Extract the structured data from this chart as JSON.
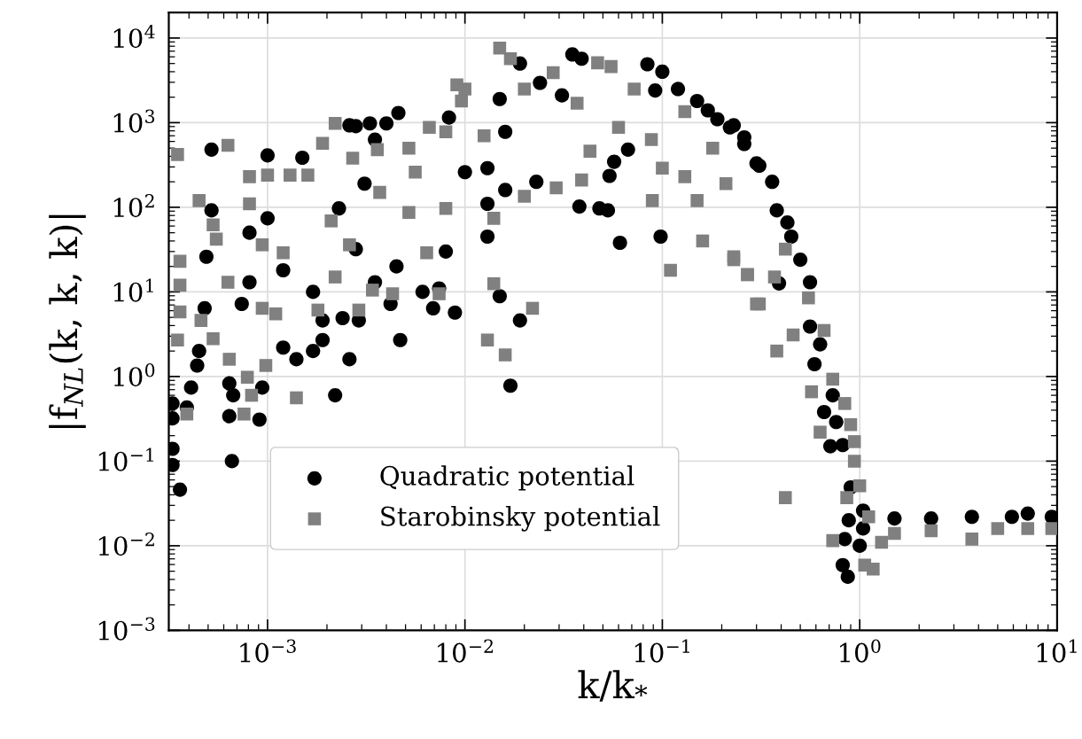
{
  "chart_data": {
    "type": "scatter",
    "xlabel": "k/k$_{*}$",
    "ylabel": "|f$_{NL}$(k, k, k)|",
    "log": "xy",
    "grid": true,
    "legend": "bottom left",
    "xlim": [
      0.000316,
      10
    ],
    "ylim": [
      0.001,
      20000
    ],
    "xticks": [
      {
        "value": 0.001,
        "label": "10$^{−3}$"
      },
      {
        "value": 0.01,
        "label": "10$^{−2}$"
      },
      {
        "value": 0.1,
        "label": "10$^{−1}$"
      },
      {
        "value": 1,
        "label": "10$^{0}$"
      },
      {
        "value": 10,
        "label": "10$^{1}$"
      }
    ],
    "yticks": [
      {
        "value": 0.001,
        "label": "10$^{−3}$"
      },
      {
        "value": 0.01,
        "label": "10$^{−2}$"
      },
      {
        "value": 0.1,
        "label": "10$^{−1}$"
      },
      {
        "value": 1,
        "label": "10$^{0}$"
      },
      {
        "value": 10,
        "label": "10$^{1}$"
      },
      {
        "value": 100,
        "label": "10$^{2}$"
      },
      {
        "value": 1000,
        "label": "10$^{3}$"
      },
      {
        "value": 10000,
        "label": "10$^{4}$"
      }
    ],
    "series": [
      {
        "name": "Quadratic potential",
        "color": "#000000",
        "marker": "circle",
        "x": [
          0.00033,
          0.00033,
          0.00033,
          0.00033,
          0.00036,
          0.00039,
          0.00041,
          0.00044,
          0.00045,
          0.00048,
          0.00049,
          0.00052,
          0.00052,
          0.00074,
          0.00064,
          0.00067,
          0.00064,
          0.00066,
          0.00081,
          0.00081,
          0.00094,
          0.00091,
          0.001,
          0.001,
          0.0012,
          0.0012,
          0.0014,
          0.0015,
          0.0017,
          0.0017,
          0.0019,
          0.0019,
          0.0022,
          0.0024,
          0.0026,
          0.0026,
          0.0028,
          0.0033,
          0.004,
          0.0046,
          0.0035,
          0.0031,
          0.0023,
          0.0028,
          0.0035,
          0.0029,
          0.0042,
          0.0047,
          0.0045,
          0.0061,
          0.0069,
          0.0089,
          0.008,
          0.0074,
          0.0083,
          0.013,
          0.015,
          0.019,
          0.017,
          0.013,
          0.016,
          0.019,
          0.016,
          0.015,
          0.024,
          0.035,
          0.039,
          0.038,
          0.048,
          0.053,
          0.061,
          0.098,
          0.054,
          0.057,
          0.067,
          0.084,
          0.1,
          0.092,
          0.12,
          0.15,
          0.17,
          0.19,
          0.22,
          0.26,
          0.3,
          0.031,
          0.023,
          0.01,
          0.013,
          0.23,
          0.26,
          0.31,
          0.36,
          0.38,
          0.43,
          0.45,
          0.5,
          0.39,
          0.56,
          0.56,
          0.63,
          0.59,
          0.73,
          0.66,
          0.76,
          0.71,
          0.82,
          0.9,
          0.88,
          0.84,
          0.82,
          0.87,
          1.0,
          1.04,
          1.04,
          1.5,
          2.3,
          3.7,
          5.9,
          7.1,
          9.4
        ],
        "values": [
          0.48,
          0.32,
          0.14,
          0.09,
          0.046,
          0.43,
          0.74,
          1.35,
          2.0,
          6.4,
          26,
          480,
          92,
          7.2,
          0.83,
          0.6,
          0.34,
          0.1,
          13,
          50,
          0.74,
          0.31,
          410,
          74,
          18,
          2.2,
          1.6,
          385,
          2.0,
          10,
          2.7,
          4.6,
          0.6,
          4.9,
          1.6,
          930,
          910,
          980,
          980,
          1300,
          630,
          190,
          97,
          32,
          13,
          4.6,
          7.2,
          2.7,
          20,
          10,
          6.4,
          5.7,
          30,
          11,
          1150,
          45,
          8.9,
          4.6,
          0.78,
          110,
          160,
          5000,
          780,
          1900,
          2950,
          6400,
          5700,
          102,
          97,
          92,
          38,
          45,
          235,
          345,
          480,
          4900,
          4000,
          2400,
          2500,
          1800,
          1400,
          1100,
          880,
          560,
          330,
          2100,
          200,
          260,
          290,
          930,
          670,
          310,
          200,
          92,
          66,
          45,
          24,
          12.6,
          13,
          3.9,
          2.4,
          1.4,
          0.6,
          0.38,
          0.29,
          0.15,
          0.155,
          0.049,
          0.02,
          0.012,
          0.0059,
          0.0043,
          0.01,
          0.026,
          0.016,
          0.021,
          0.021,
          0.022,
          0.022,
          0.024,
          0.022
        ]
      },
      {
        "name": "Starobinsky potential",
        "color": "#808080",
        "marker": "square",
        "x": [
          0.00035,
          0.00035,
          0.00039,
          0.00036,
          0.00036,
          0.00036,
          0.00045,
          0.00053,
          0.00055,
          0.00046,
          0.00053,
          0.00063,
          0.00064,
          0.00079,
          0.00083,
          0.00076,
          0.00098,
          0.00081,
          0.00081,
          0.001,
          0.00094,
          0.0011,
          0.00094,
          0.00063,
          0.0013,
          0.0014,
          0.0012,
          0.0016,
          0.0019,
          0.0021,
          0.0018,
          0.0022,
          0.0022,
          0.0027,
          0.0026,
          0.0029,
          0.0034,
          0.0036,
          0.0037,
          0.0043,
          0.0052,
          0.0056,
          0.0052,
          0.0066,
          0.0064,
          0.0074,
          0.008,
          0.0091,
          0.008,
          0.015,
          0.017,
          0.0096,
          0.014,
          0.013,
          0.016,
          0.022,
          0.014,
          0.02,
          0.0125,
          0.029,
          0.039,
          0.043,
          0.028,
          0.047,
          0.055,
          0.072,
          0.037,
          0.06,
          0.088,
          0.1,
          0.089,
          0.11,
          0.13,
          0.15,
          0.16,
          0.13,
          0.18,
          0.21,
          0.23,
          0.27,
          0.3,
          0.02,
          0.01,
          0.23,
          0.27,
          0.31,
          0.38,
          0.42,
          0.37,
          0.46,
          0.42,
          0.55,
          0.66,
          0.57,
          0.63,
          0.73,
          0.84,
          0.9,
          0.94,
          0.94,
          1.0,
          0.86,
          0.73,
          1.06,
          1.17,
          1.11,
          1.29,
          1.5,
          2.3,
          3.7,
          5.0,
          7.1,
          9.4
        ],
        "values": [
          420,
          2.7,
          0.36,
          23,
          12,
          5.8,
          120,
          62,
          42,
          4.6,
          2.8,
          540,
          1.6,
          0.98,
          0.6,
          0.36,
          1.35,
          230,
          110,
          240,
          36,
          5.5,
          6.4,
          13,
          240,
          0.56,
          29,
          240,
          570,
          69,
          6.1,
          980,
          15,
          380,
          36,
          6.1,
          10.5,
          480,
          150,
          9.5,
          500,
          260,
          87,
          880,
          29,
          9.5,
          780,
          2800,
          97,
          7600,
          5700,
          1800,
          12.5,
          2.7,
          1.8,
          6.4,
          74,
          135,
          700,
          170,
          210,
          460,
          3900,
          5100,
          4600,
          2500,
          1700,
          880,
          630,
          290,
          120,
          18,
          230,
          120,
          40,
          1350,
          500,
          190,
          24,
          16,
          7.2,
          2500,
          2500,
          26,
          16,
          7.2,
          2.0,
          0.037,
          15,
          3.1,
          32,
          8.5,
          3.5,
          0.66,
          0.22,
          0.93,
          0.48,
          0.27,
          0.17,
          0.1,
          0.051,
          0.037,
          0.0115,
          0.0059,
          0.0053,
          0.022,
          0.011,
          0.014,
          0.015,
          0.012,
          0.016,
          0.016,
          0.016
        ]
      }
    ]
  }
}
